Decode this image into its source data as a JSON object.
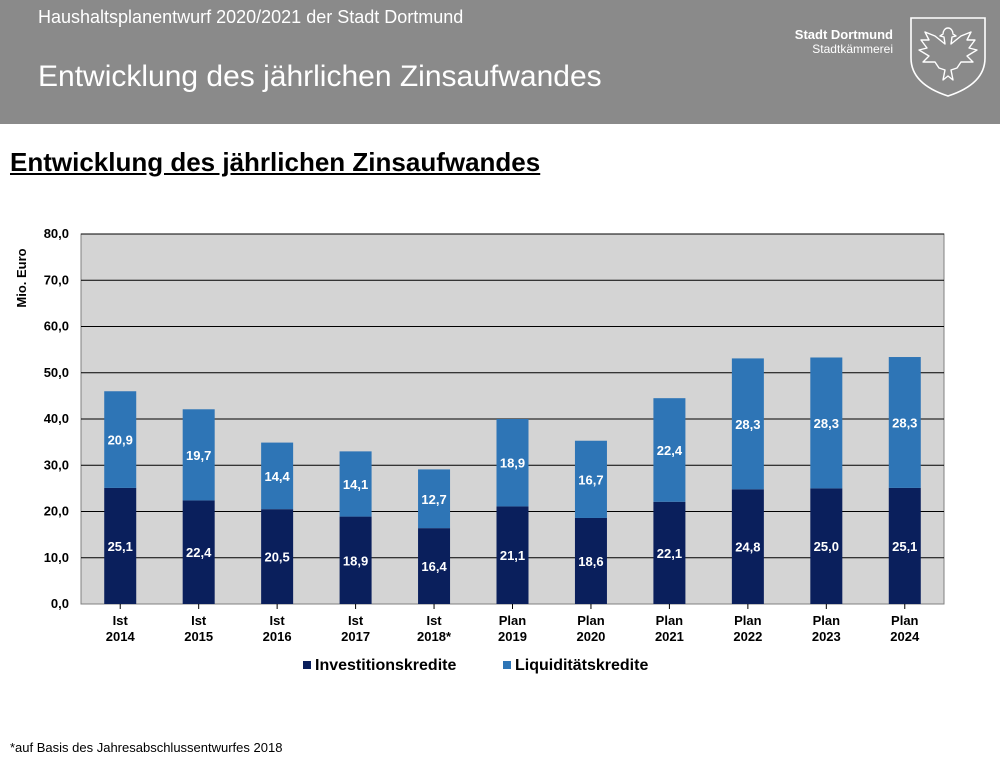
{
  "header": {
    "subtitle": "Haushaltsplanentwurf 2020/2021 der Stadt Dortmund",
    "title": "Entwicklung des jährlichen Zinsaufwandes",
    "brand_name": "Stadt Dortmund",
    "brand_dept": "Stadtkämmerei"
  },
  "section_title": "Entwicklung des jährlichen Zinsaufwandes",
  "footnote": "*auf Basis des Jahresabschlussentwurfes 2018",
  "colors": {
    "investition": "#0a1f5c",
    "liquiditaet": "#2e75b6",
    "plot_bg": "#d4d4d4",
    "header_bg": "#8a8a8a"
  },
  "chart_data": {
    "type": "bar",
    "stacked": true,
    "ylabel": "Mio. Euro",
    "ylim": [
      0,
      80
    ],
    "yticks": [
      "0,0",
      "10,0",
      "20,0",
      "30,0",
      "40,0",
      "50,0",
      "60,0",
      "70,0",
      "80,0"
    ],
    "categories": [
      [
        "Ist",
        "2014"
      ],
      [
        "Ist",
        "2015"
      ],
      [
        "Ist",
        "2016"
      ],
      [
        "Ist",
        "2017"
      ],
      [
        "Ist",
        "2018*"
      ],
      [
        "Plan",
        "2019"
      ],
      [
        "Plan",
        "2020"
      ],
      [
        "Plan",
        "2021"
      ],
      [
        "Plan",
        "2022"
      ],
      [
        "Plan",
        "2023"
      ],
      [
        "Plan",
        "2024"
      ]
    ],
    "series": [
      {
        "name": "Investitionskredite",
        "values": [
          25.1,
          22.4,
          20.5,
          18.9,
          16.4,
          21.1,
          18.6,
          22.1,
          24.8,
          25.0,
          25.1
        ],
        "labels": [
          "25,1",
          "22,4",
          "20,5",
          "18,9",
          "16,4",
          "21,1",
          "18,6",
          "22,1",
          "24,8",
          "25,0",
          "25,1"
        ]
      },
      {
        "name": "Liquiditätskredite",
        "values": [
          20.9,
          19.7,
          14.4,
          14.1,
          12.7,
          18.9,
          16.7,
          22.4,
          28.3,
          28.3,
          28.3
        ],
        "labels": [
          "20,9",
          "19,7",
          "14,4",
          "14,1",
          "12,7",
          "18,9",
          "16,7",
          "22,4",
          "28,3",
          "28,3",
          "28,3"
        ]
      }
    ],
    "legend": "bottom",
    "grid": true
  }
}
